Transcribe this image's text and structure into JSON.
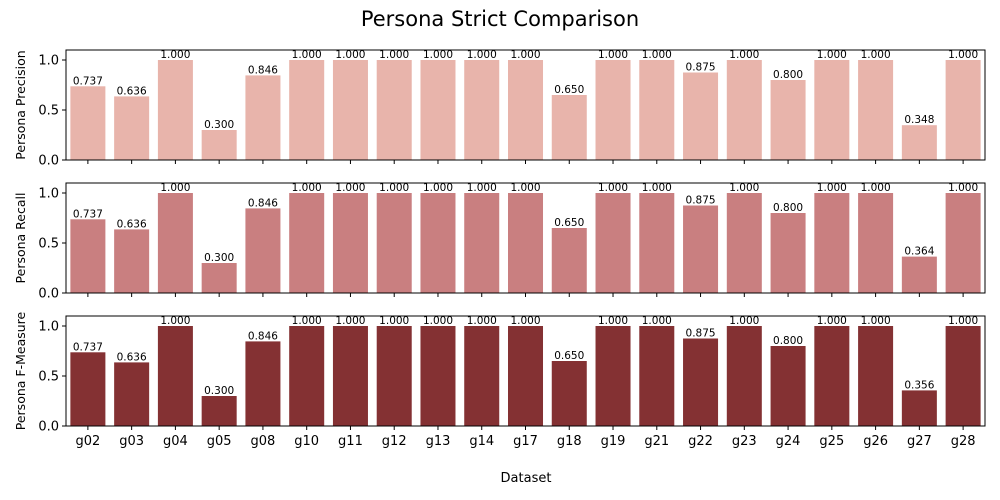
{
  "chart_data": {
    "type": "bar",
    "title": "Persona Strict Comparison",
    "xlabel": "Dataset",
    "categories": [
      "g02",
      "g03",
      "g04",
      "g05",
      "g08",
      "g10",
      "g11",
      "g12",
      "g13",
      "g14",
      "g17",
      "g18",
      "g19",
      "g21",
      "g22",
      "g23",
      "g24",
      "g25",
      "g26",
      "g27",
      "g28"
    ],
    "ylim": [
      0,
      1.1
    ],
    "yticks": [
      "0.0",
      "0.5",
      "1.0"
    ],
    "grid": false,
    "panels": [
      {
        "ylabel": "Persona Precision",
        "color": "#e8b4ab",
        "values": [
          0.737,
          0.636,
          1.0,
          0.3,
          0.846,
          1.0,
          1.0,
          1.0,
          1.0,
          1.0,
          1.0,
          0.65,
          1.0,
          1.0,
          0.875,
          1.0,
          0.8,
          1.0,
          1.0,
          0.348,
          1.0
        ],
        "labels": [
          "0.737",
          "0.636",
          "1.000",
          "0.300",
          "0.846",
          "1.000",
          "1.000",
          "1.000",
          "1.000",
          "1.000",
          "1.000",
          "0.650",
          "1.000",
          "1.000",
          "0.875",
          "1.000",
          "0.800",
          "1.000",
          "1.000",
          "0.348",
          "1.000"
        ]
      },
      {
        "ylabel": "Persona Recall",
        "color": "#c97f80",
        "values": [
          0.737,
          0.636,
          1.0,
          0.3,
          0.846,
          1.0,
          1.0,
          1.0,
          1.0,
          1.0,
          1.0,
          0.65,
          1.0,
          1.0,
          0.875,
          1.0,
          0.8,
          1.0,
          1.0,
          0.364,
          1.0
        ],
        "labels": [
          "0.737",
          "0.636",
          "1.000",
          "0.300",
          "0.846",
          "1.000",
          "1.000",
          "1.000",
          "1.000",
          "1.000",
          "1.000",
          "0.650",
          "1.000",
          "1.000",
          "0.875",
          "1.000",
          "0.800",
          "1.000",
          "1.000",
          "0.364",
          "1.000"
        ]
      },
      {
        "ylabel": "Persona F-Measure",
        "color": "#843133",
        "values": [
          0.737,
          0.636,
          1.0,
          0.3,
          0.846,
          1.0,
          1.0,
          1.0,
          1.0,
          1.0,
          1.0,
          0.65,
          1.0,
          1.0,
          0.875,
          1.0,
          0.8,
          1.0,
          1.0,
          0.356,
          1.0
        ],
        "labels": [
          "0.737",
          "0.636",
          "1.000",
          "0.300",
          "0.846",
          "1.000",
          "1.000",
          "1.000",
          "1.000",
          "1.000",
          "1.000",
          "0.650",
          "1.000",
          "1.000",
          "0.875",
          "1.000",
          "0.800",
          "1.000",
          "1.000",
          "0.356",
          "1.000"
        ]
      }
    ]
  }
}
